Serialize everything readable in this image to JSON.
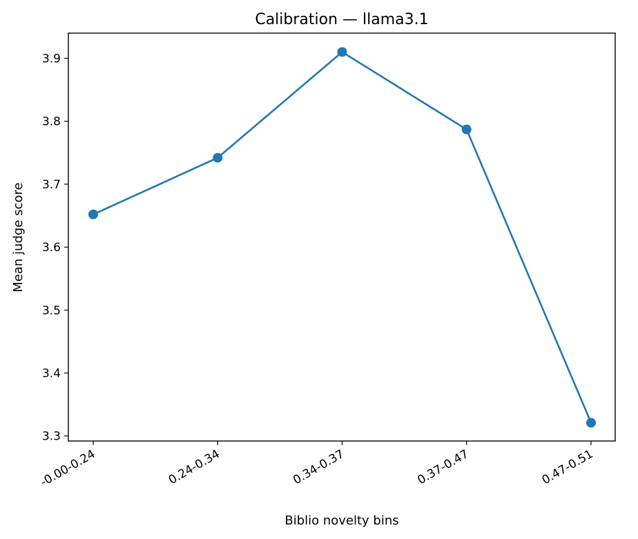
{
  "chart_data": {
    "type": "line",
    "title": "Calibration — llama3.1",
    "xlabel": "Biblio novelty bins",
    "ylabel": "Mean judge score",
    "categories": [
      "-0.00-0.24",
      "0.24-0.34",
      "0.34-0.37",
      "0.37-0.47",
      "0.47-0.51"
    ],
    "series": [
      {
        "values": [
          3.652,
          3.742,
          3.91,
          3.787,
          3.321
        ]
      }
    ],
    "ylim": [
      3.292,
      3.94
    ],
    "yticks": [
      "3.3",
      "3.4",
      "3.5",
      "3.6",
      "3.7",
      "3.8",
      "3.9"
    ],
    "grid": false,
    "markers": true,
    "colors": {
      "line": "#1f77b4"
    }
  }
}
